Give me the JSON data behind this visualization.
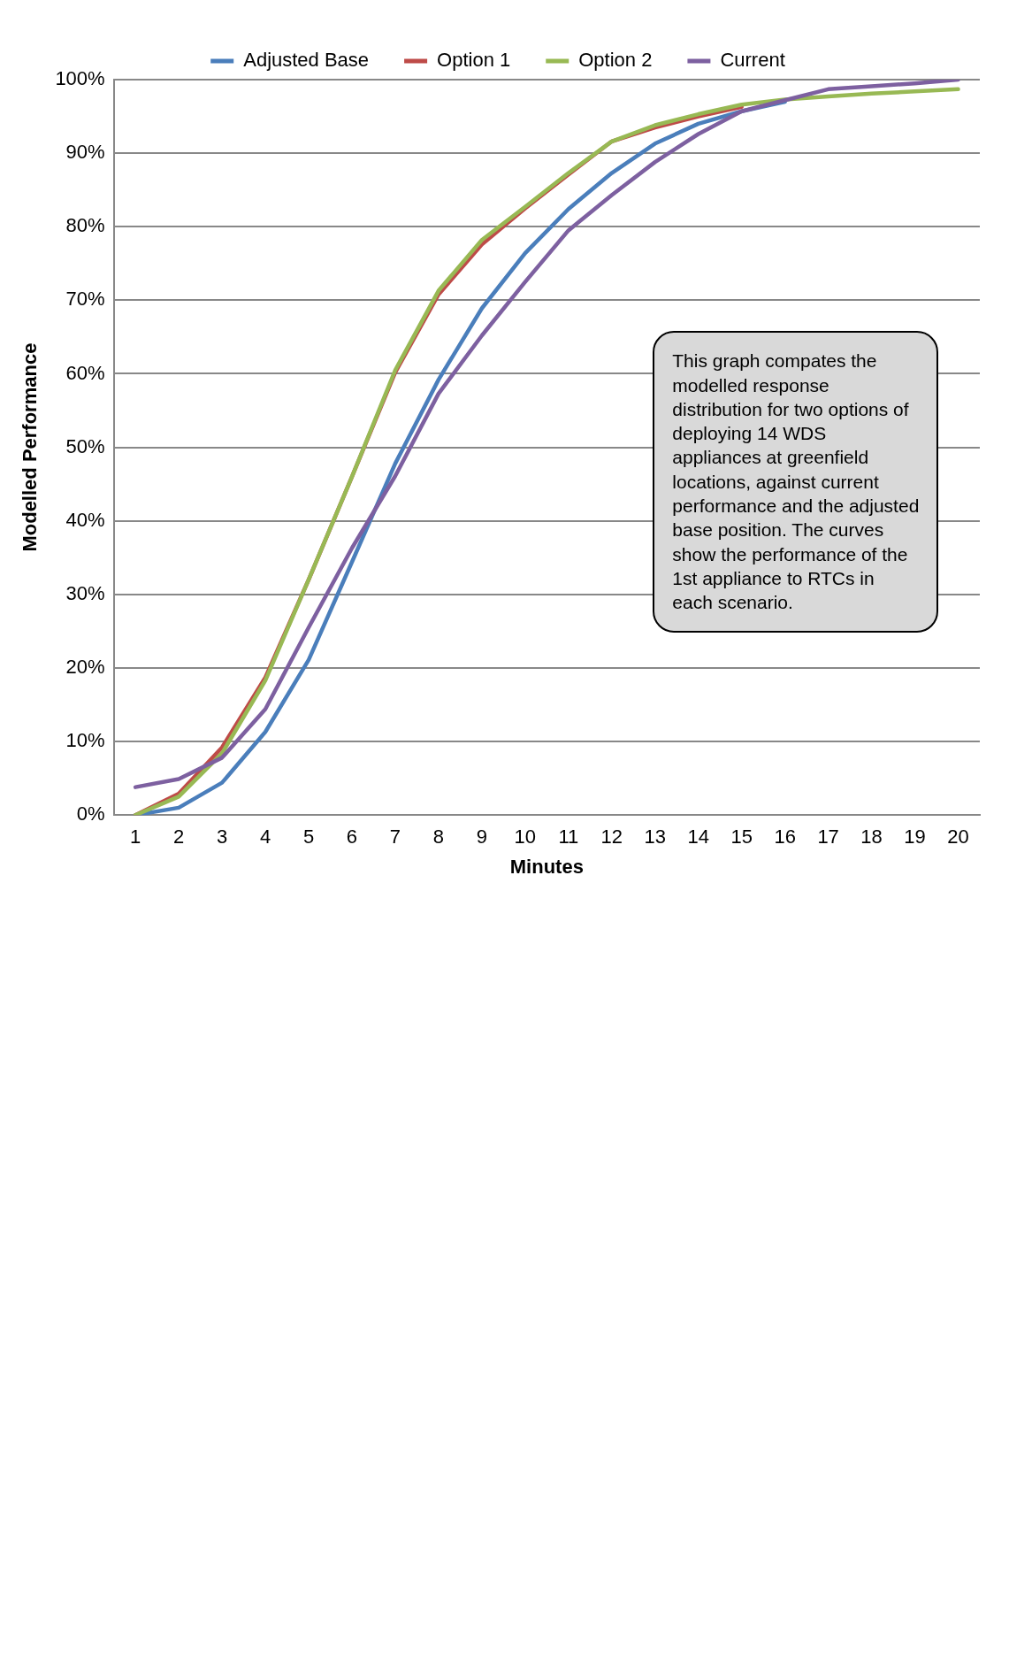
{
  "chart_data": {
    "type": "line",
    "xlabel": "Minutes",
    "ylabel": "Modelled Performance",
    "x": [
      1,
      2,
      3,
      4,
      5,
      6,
      7,
      8,
      9,
      10,
      11,
      12,
      13,
      14,
      15,
      16,
      17,
      18,
      19,
      20
    ],
    "xlim": [
      0.5,
      20.5
    ],
    "xticks": [
      1,
      2,
      3,
      4,
      5,
      6,
      7,
      8,
      9,
      10,
      11,
      12,
      13,
      14,
      15,
      16,
      17,
      18,
      19,
      20
    ],
    "ylim": [
      0,
      100
    ],
    "yticks": [
      {
        "value": 0,
        "label": "0%"
      },
      {
        "value": 10,
        "label": "10%"
      },
      {
        "value": 20,
        "label": "20%"
      },
      {
        "value": 30,
        "label": "30%"
      },
      {
        "value": 40,
        "label": "40%"
      },
      {
        "value": 50,
        "label": "50%"
      },
      {
        "value": 60,
        "label": "60%"
      },
      {
        "value": 70,
        "label": "70%"
      },
      {
        "value": 80,
        "label": "80%"
      },
      {
        "value": 90,
        "label": "90%"
      },
      {
        "value": 100,
        "label": "100%"
      }
    ],
    "grid": "y",
    "legend": "top",
    "marker": "none",
    "line_style": "solid",
    "series": [
      {
        "name": "Adjusted Base",
        "color": "#4a7ebb",
        "values": [
          0,
          1,
          4.4,
          11.3,
          21.1,
          34.4,
          47.8,
          59.2,
          68.9,
          76.4,
          82.4,
          87.3,
          91.3,
          94,
          95.7,
          97,
          null,
          null,
          null,
          null
        ]
      },
      {
        "name": "Option 1",
        "color": "#be4b48",
        "values": [
          0,
          2.9,
          9.2,
          18.7,
          32,
          46,
          60.2,
          70.8,
          77.6,
          82.5,
          87.1,
          91.6,
          93.5,
          95,
          96.3,
          null,
          null,
          null,
          null,
          null
        ]
      },
      {
        "name": "Option 2",
        "color": "#98b954",
        "values": [
          0,
          2.5,
          8.4,
          18.3,
          32,
          46,
          60.5,
          71.3,
          78.2,
          82.7,
          87.3,
          91.6,
          93.8,
          95.3,
          96.6,
          97.3,
          97.7,
          98.1,
          98.4,
          98.7
        ]
      },
      {
        "name": "Current",
        "color": "#7d60a0",
        "values": [
          3.8,
          4.9,
          7.8,
          14.4,
          25.5,
          36.3,
          46.1,
          57.3,
          65.2,
          72.5,
          79.5,
          84.3,
          88.8,
          92.6,
          95.7,
          97.2,
          98.7,
          99.1,
          99.5,
          100
        ]
      }
    ],
    "annotations": [
      "This graph compates the modelled response distribution for two options of deploying 14 WDS appliances at greenfield locations, against current performance and the adjusted base position.  The curves show the performance of the 1st appliance to RTCs in each scenario."
    ]
  }
}
